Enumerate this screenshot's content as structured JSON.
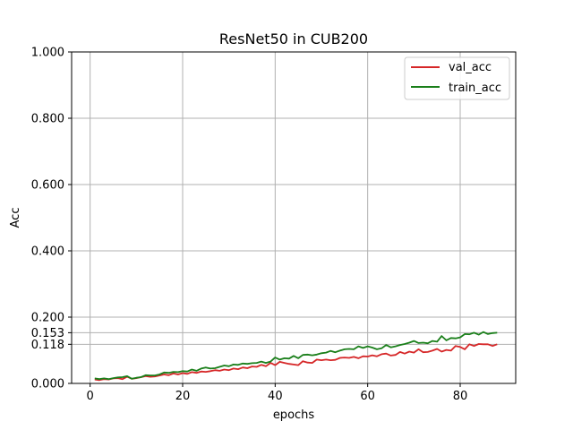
{
  "chart_data": {
    "type": "line",
    "title": "ResNet50 in CUB200",
    "xlabel": "epochs",
    "ylabel": "Acc",
    "xlim": [
      -4,
      92
    ],
    "ylim": [
      0.0,
      1.0
    ],
    "x_ticks": [
      0,
      20,
      40,
      60,
      80
    ],
    "x_tick_labels": [
      "0",
      "20",
      "40",
      "60",
      "80"
    ],
    "y_ticks": [
      0.0,
      0.118,
      0.153,
      0.2,
      0.4,
      0.6,
      0.8,
      1.0
    ],
    "y_tick_labels": [
      "0.000",
      "0.118",
      "0.153",
      "0.200",
      "0.400",
      "0.600",
      "0.800",
      "1.000"
    ],
    "grid": true,
    "legend_position": "top-right",
    "x": [
      1,
      2,
      3,
      4,
      5,
      6,
      7,
      8,
      9,
      10,
      11,
      12,
      13,
      14,
      15,
      16,
      17,
      18,
      19,
      20,
      21,
      22,
      23,
      24,
      25,
      26,
      27,
      28,
      29,
      30,
      31,
      32,
      33,
      34,
      35,
      36,
      37,
      38,
      39,
      40,
      41,
      42,
      43,
      44,
      45,
      46,
      47,
      48,
      49,
      50,
      51,
      52,
      53,
      54,
      55,
      56,
      57,
      58,
      59,
      60,
      61,
      62,
      63,
      64,
      65,
      66,
      67,
      68,
      69,
      70,
      71,
      72,
      73,
      74,
      75,
      76,
      77,
      78,
      79,
      80,
      81,
      82,
      83,
      84,
      85,
      86,
      87,
      88
    ],
    "series": [
      {
        "name": "val_acc",
        "color": "#d62728",
        "values": [
          0.012,
          0.01,
          0.013,
          0.012,
          0.015,
          0.016,
          0.013,
          0.02,
          0.014,
          0.016,
          0.019,
          0.022,
          0.02,
          0.021,
          0.024,
          0.027,
          0.025,
          0.03,
          0.027,
          0.031,
          0.029,
          0.034,
          0.032,
          0.036,
          0.035,
          0.037,
          0.04,
          0.038,
          0.042,
          0.04,
          0.045,
          0.043,
          0.048,
          0.046,
          0.051,
          0.05,
          0.056,
          0.052,
          0.062,
          0.055,
          0.065,
          0.062,
          0.059,
          0.057,
          0.055,
          0.067,
          0.063,
          0.062,
          0.072,
          0.07,
          0.072,
          0.07,
          0.071,
          0.077,
          0.078,
          0.077,
          0.08,
          0.076,
          0.082,
          0.081,
          0.085,
          0.082,
          0.088,
          0.09,
          0.084,
          0.086,
          0.095,
          0.09,
          0.096,
          0.093,
          0.103,
          0.094,
          0.095,
          0.099,
          0.104,
          0.096,
          0.101,
          0.099,
          0.113,
          0.11,
          0.103,
          0.118,
          0.113,
          0.119,
          0.118,
          0.118,
          0.113,
          0.118
        ]
      },
      {
        "name": "train_acc",
        "color": "#1a7f1a",
        "values": [
          0.015,
          0.013,
          0.015,
          0.013,
          0.016,
          0.018,
          0.019,
          0.022,
          0.014,
          0.017,
          0.019,
          0.025,
          0.024,
          0.024,
          0.027,
          0.033,
          0.032,
          0.035,
          0.034,
          0.037,
          0.036,
          0.042,
          0.038,
          0.045,
          0.048,
          0.045,
          0.046,
          0.05,
          0.054,
          0.052,
          0.057,
          0.056,
          0.06,
          0.059,
          0.061,
          0.062,
          0.066,
          0.062,
          0.066,
          0.078,
          0.072,
          0.076,
          0.075,
          0.083,
          0.076,
          0.086,
          0.087,
          0.085,
          0.087,
          0.091,
          0.093,
          0.098,
          0.094,
          0.099,
          0.103,
          0.104,
          0.103,
          0.112,
          0.107,
          0.112,
          0.108,
          0.103,
          0.106,
          0.116,
          0.109,
          0.112,
          0.116,
          0.119,
          0.123,
          0.128,
          0.122,
          0.123,
          0.121,
          0.128,
          0.126,
          0.143,
          0.13,
          0.137,
          0.136,
          0.139,
          0.149,
          0.148,
          0.153,
          0.147,
          0.155,
          0.149,
          0.152,
          0.153
        ]
      }
    ]
  }
}
